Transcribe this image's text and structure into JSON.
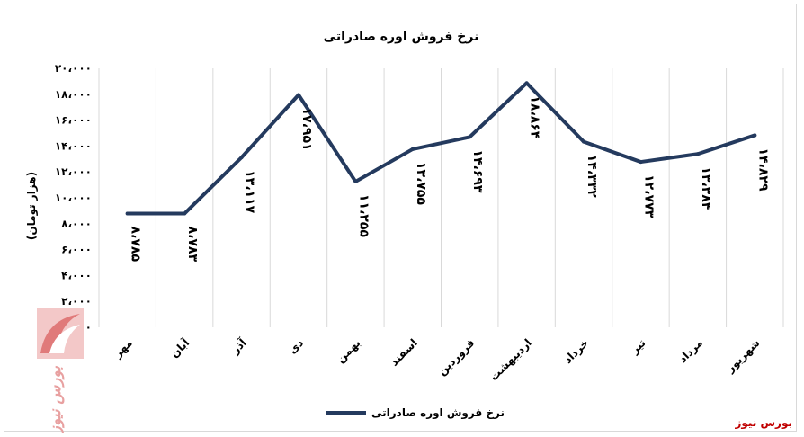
{
  "chart_data": {
    "type": "line",
    "title": "نرخ فروش اوره صادراتی",
    "ylabel": "(هزار تومان)",
    "xlabel": "",
    "ylim": [
      0,
      20000
    ],
    "yticks": [
      0,
      2000,
      4000,
      6000,
      8000,
      10000,
      12000,
      14000,
      16000,
      18000,
      20000
    ],
    "ytick_labels": [
      "۰",
      "۲،۰۰۰",
      "۴،۰۰۰",
      "۶،۰۰۰",
      "۸،۰۰۰",
      "۱۰،۰۰۰",
      "۱۲،۰۰۰",
      "۱۴،۰۰۰",
      "۱۶،۰۰۰",
      "۱۸،۰۰۰",
      "۲۰،۰۰۰"
    ],
    "categories": [
      "مهر",
      "آبان",
      "آذر",
      "دی",
      "بهمن",
      "اسفند",
      "فروردین",
      "اردیبهشت",
      "خرداد",
      "تیر",
      "مرداد",
      "شهریور"
    ],
    "series": [
      {
        "name": "نرخ فروش اوره صادراتی",
        "color": "#243a5e",
        "values": [
          8785,
          8783,
          13117,
          17951,
          11255,
          13755,
          14693,
          18864,
          14332,
          12773,
          13384,
          14829
        ],
        "data_labels": [
          "۸،۷۸۵",
          "۸،۷۸۳",
          "۱۳،۱۱۷",
          "۱۷،۹۵۱",
          "۱۱،۲۵۵",
          "۱۳،۷۵۵",
          "۱۴،۶۹۳",
          "۱۸،۸۶۴",
          "۱۴،۳۳۲",
          "۱۲،۷۷۳",
          "۱۳،۳۸۴",
          "۱۴،۸۲۹"
        ]
      }
    ],
    "grid": "vertical",
    "legend": "bottom"
  },
  "branding": {
    "footer_text": "بورس نیوز",
    "watermark_text": "بورس نیوز"
  }
}
